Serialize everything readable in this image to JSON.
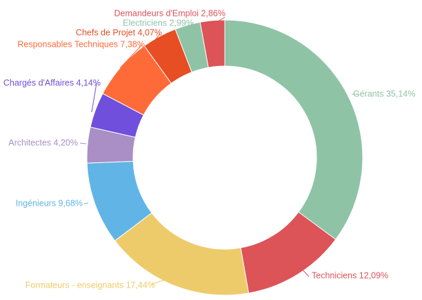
{
  "chart_data": {
    "type": "pie",
    "variant": "donut",
    "start_category": "Gérants",
    "direction": "clockwise",
    "slices": [
      {
        "label": "Gérants",
        "value": 35.14,
        "label_text": "Gérants 35,14%",
        "color": "#8fc3a6"
      },
      {
        "label": "Techniciens",
        "value": 12.09,
        "label_text": "Techniciens 12,09%",
        "color": "#dc5358"
      },
      {
        "label": "Formateurs - enseignants",
        "value": 17.44,
        "label_text": "Formateurs - enseignants 17,44%",
        "color": "#eecb6a"
      },
      {
        "label": "Ingénieurs",
        "value": 9.68,
        "label_text": "Ingénieurs 9,68%",
        "color": "#60b5e6"
      },
      {
        "label": "Architectes",
        "value": 4.2,
        "label_text": "Architectes 4,20%",
        "color": "#a98fc6"
      },
      {
        "label": "Chargés d'Affaires",
        "value": 4.14,
        "label_text": "Chargés d'Affaires 4,14%",
        "color": "#6f4fdc"
      },
      {
        "label": "Responsables Techniques",
        "value": 7.38,
        "label_text": "Responsables Techniques 7,38%",
        "color": "#fe6b39"
      },
      {
        "label": "Chefs de Projet",
        "value": 4.07,
        "label_text": "Chefs de Projet 4,07%",
        "color": "#e74e24"
      },
      {
        "label": "Electriciens",
        "value": 2.99,
        "label_text": "Electriciens 2,99%",
        "color": "#8fc3a6"
      },
      {
        "label": "Demandeurs d'Emploi",
        "value": 2.86,
        "label_text": "Demandeurs d'Emploi 2,86%",
        "color": "#dc5358"
      }
    ]
  }
}
